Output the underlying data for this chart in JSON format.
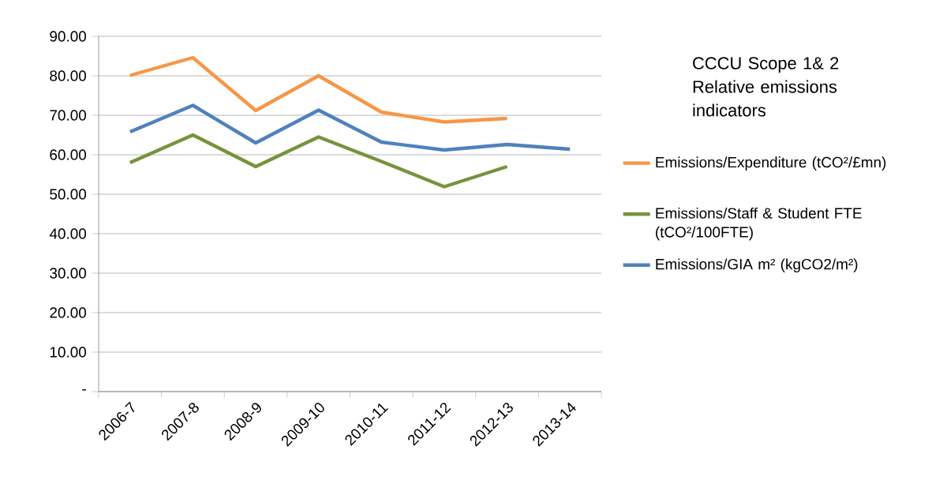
{
  "chart_data": {
    "type": "line",
    "title": "CCCU Scope 1& 2 Relative emissions indicators",
    "categories": [
      "2006-7",
      "2007-8",
      "2008-9",
      "2009-10",
      "2010-11",
      "2011-12",
      "2012-13",
      "2013-14"
    ],
    "series": [
      {
        "name": "Emissions/Expenditure (tCO²/£mn)",
        "color": "#f79646",
        "values": [
          80.1,
          84.6,
          71.2,
          80.0,
          70.8,
          68.3,
          69.2,
          null
        ]
      },
      {
        "name": "Emissions/Staff & Student FTE (tCO²/100FTE)",
        "color": "#77933c",
        "values": [
          58.0,
          65.0,
          57.0,
          64.5,
          58.3,
          51.9,
          57.0,
          null
        ]
      },
      {
        "name": "Emissions/GIA m² (kgCO2/m²)",
        "color": "#4f81bd",
        "values": [
          65.8,
          72.5,
          63.0,
          71.3,
          63.2,
          61.2,
          62.6,
          61.4
        ]
      }
    ],
    "ylim": [
      0,
      90
    ],
    "yticks": [
      {
        "value": 0,
        "label": "-"
      },
      {
        "value": 10,
        "label": "10.00"
      },
      {
        "value": 20,
        "label": "20.00"
      },
      {
        "value": 30,
        "label": "30.00"
      },
      {
        "value": 40,
        "label": "40.00"
      },
      {
        "value": 50,
        "label": "50.00"
      },
      {
        "value": 60,
        "label": "60.00"
      },
      {
        "value": 70,
        "label": "70.00"
      },
      {
        "value": 80,
        "label": "80.00"
      },
      {
        "value": 90,
        "label": "90.00"
      }
    ],
    "grid": "y",
    "legend": "right",
    "marker": "none",
    "line_style": "solid"
  }
}
